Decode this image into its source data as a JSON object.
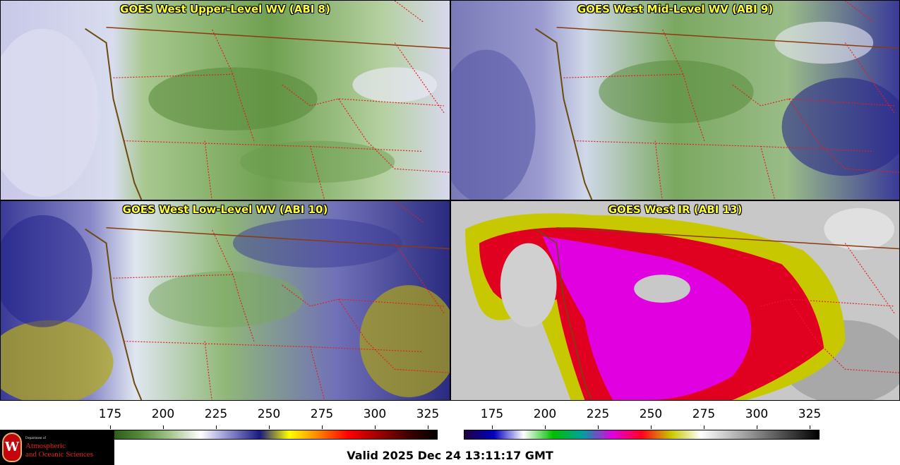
{
  "panels": [
    {
      "title": "GOES West Upper-Level WV (ABI 8)",
      "colormap": "wv",
      "moisture": "high"
    },
    {
      "title": "GOES West Mid-Level WV (ABI 9)",
      "colormap": "wv",
      "moisture": "mid"
    },
    {
      "title": "GOES West Low-Level WV (ABI 10)",
      "colormap": "wv",
      "moisture": "low"
    },
    {
      "title": "GOES West IR (ABI 13)",
      "colormap": "ir",
      "moisture": "ir"
    }
  ],
  "colorbars": [
    {
      "name": "water-vapor",
      "ticks": [
        "175",
        "200",
        "225",
        "250",
        "275",
        "300",
        "325"
      ],
      "stops": [
        "#0a2a00",
        "#2a5a14",
        "#5a8c3c",
        "#a8c890",
        "#ffffff",
        "#8888cc",
        "#1a1a80",
        "#ffff00",
        "#ff8000",
        "#ff0000",
        "#a00000",
        "#400000",
        "#000000"
      ]
    },
    {
      "name": "infrared",
      "ticks": [
        "175",
        "200",
        "225",
        "250",
        "275",
        "300",
        "325"
      ],
      "stops": [
        "#200040",
        "#0000c0",
        "#ffffff",
        "#00c000",
        "#00a0a0",
        "#e000e0",
        "#ff0020",
        "#c8c800",
        "#ffffff",
        "#c0c0c0",
        "#808080",
        "#404040",
        "#000000"
      ]
    }
  ],
  "valid_time": "Valid 2025 Dec 24 13:11:17 GMT",
  "logo": {
    "department": "Department of",
    "line1": "Atmospheric",
    "line2": "and Oceanic Sciences",
    "seal": "W"
  },
  "colors": {
    "coastline": "#6b4a10",
    "borders": "#e02020",
    "title": "#ffff33"
  }
}
